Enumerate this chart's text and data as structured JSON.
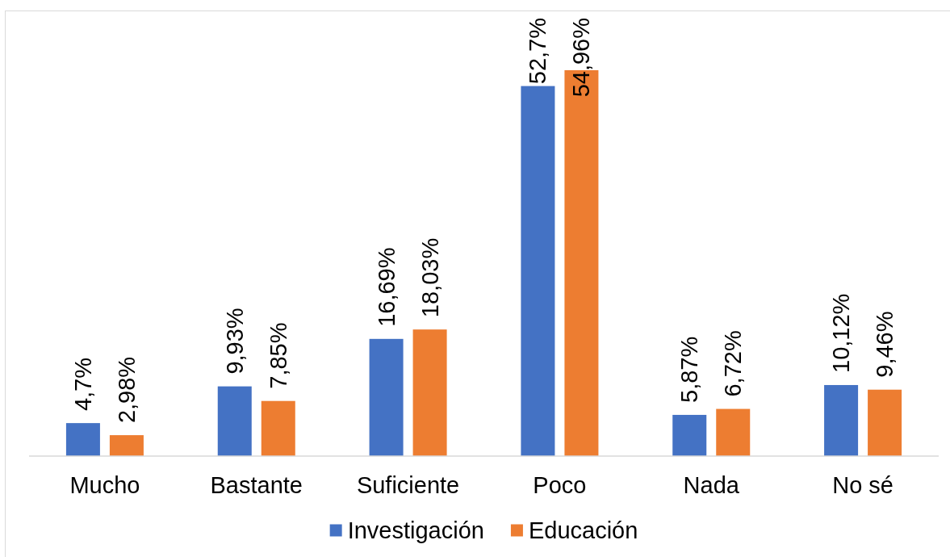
{
  "chart_data": {
    "type": "bar",
    "categories": [
      "Mucho",
      "Bastante",
      "Suficiente",
      "Poco",
      "Nada",
      "No sé"
    ],
    "series": [
      {
        "name": "Investigación",
        "color": "#4472c4",
        "values": [
          4.7,
          9.93,
          16.69,
          52.7,
          5.87,
          10.12
        ],
        "value_labels": [
          "4,7%",
          "9,93%",
          "16,69%",
          "52,7%",
          "5,87%",
          "10,12%"
        ]
      },
      {
        "name": "Educación",
        "color": "#ed7d31",
        "values": [
          2.98,
          7.85,
          18.03,
          54.96,
          6.72,
          9.46
        ],
        "value_labels": [
          "2,98%",
          "7,85%",
          "18,03%",
          "54,96%",
          "6,72%",
          "9,46%"
        ]
      }
    ],
    "legend": "bottom"
  }
}
